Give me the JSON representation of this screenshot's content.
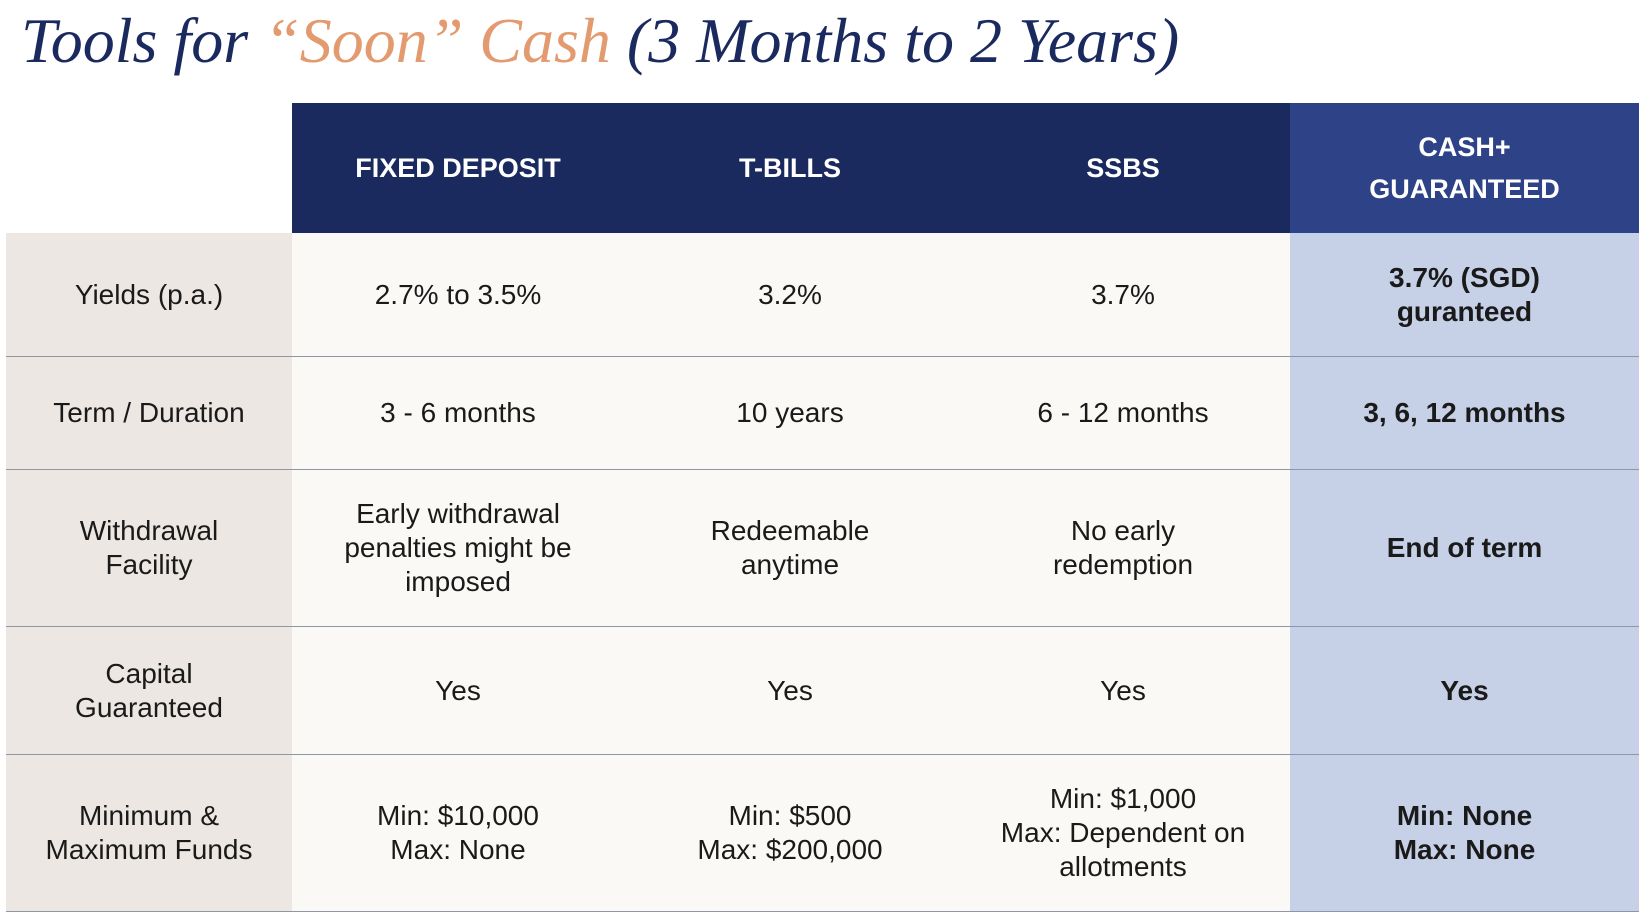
{
  "title": {
    "part1": "Tools for",
    "part2": "“Soon” Cash",
    "part3": "(3 Months to 2 Years)"
  },
  "table": {
    "header": [
      [
        "FIXED DEPOSIT"
      ],
      [
        "T-BILLS"
      ],
      [
        "SSBS"
      ],
      [
        "CASH+",
        "GUARANTEED"
      ]
    ],
    "rows": [
      {
        "label": [
          "Yields (p.a.)"
        ],
        "cells": [
          [
            "2.7% to 3.5%"
          ],
          [
            "3.2%"
          ],
          [
            "3.7%"
          ],
          [
            "3.7% (SGD)",
            "guranteed"
          ]
        ]
      },
      {
        "label": [
          "Term / Duration"
        ],
        "cells": [
          [
            "3 - 6 months"
          ],
          [
            "10 years"
          ],
          [
            "6 - 12 months"
          ],
          [
            "3, 6, 12 months"
          ]
        ]
      },
      {
        "label": [
          "Withdrawal",
          "Facility"
        ],
        "cells": [
          [
            "Early withdrawal",
            "penalties might be",
            "imposed"
          ],
          [
            "Redeemable",
            "anytime"
          ],
          [
            "No early",
            "redemption"
          ],
          [
            "End of term"
          ]
        ]
      },
      {
        "label": [
          "Capital",
          "Guaranteed"
        ],
        "cells": [
          [
            "Yes"
          ],
          [
            "Yes"
          ],
          [
            "Yes"
          ],
          [
            "Yes"
          ]
        ]
      },
      {
        "label": [
          "Minimum &",
          "Maximum Funds"
        ],
        "cells": [
          [
            "Min: $10,000",
            "Max: None"
          ],
          [
            "Min: $500",
            "Max: $200,000"
          ],
          [
            "Min: $1,000",
            "Max: Dependent on",
            "allotments"
          ],
          [
            "Min: None",
            "Max: None"
          ]
        ]
      }
    ]
  }
}
